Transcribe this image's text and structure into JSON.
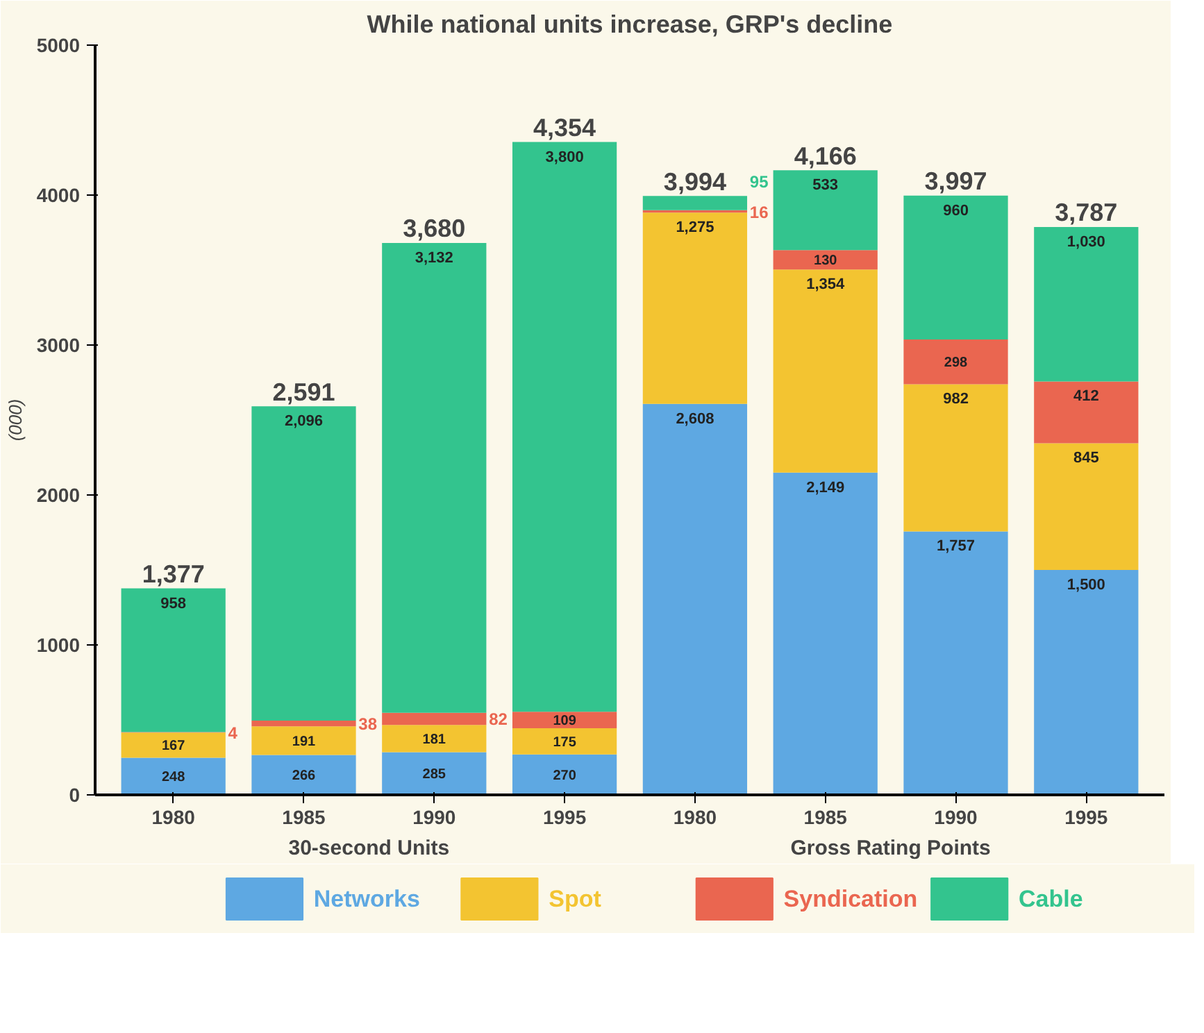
{
  "chart_data": {
    "type": "bar",
    "title": "While national units increase, GRP's decline",
    "ylabel": "(000)",
    "categories": [
      "1980",
      "1985",
      "1990",
      "1995",
      "1980",
      "1985",
      "1990",
      "1995"
    ],
    "stacked": true,
    "series": [
      {
        "name": "Networks",
        "color": "#5ea8e2",
        "values": [
          248,
          266,
          285,
          270,
          2608,
          2149,
          1757,
          1500
        ],
        "value_labels": [
          "248",
          "266",
          "285",
          "270",
          "2,608",
          "2,149",
          "1,757",
          "1,500"
        ]
      },
      {
        "name": "Spot",
        "color": "#f3c431",
        "values": [
          167,
          191,
          181,
          175,
          1275,
          1354,
          982,
          845
        ],
        "value_labels": [
          "167",
          "191",
          "181",
          "175",
          "1,275",
          "1,354",
          "982",
          "845"
        ]
      },
      {
        "name": "Syndication",
        "color": "#ea6650",
        "values": [
          4,
          38,
          82,
          109,
          16,
          130,
          298,
          412
        ],
        "value_labels": [
          "4",
          "38",
          "82",
          "109",
          "16",
          "130",
          "298",
          "412"
        ]
      },
      {
        "name": "Cable",
        "color": "#33c48e",
        "values": [
          958,
          2096,
          3132,
          3800,
          95,
          533,
          960,
          1030
        ],
        "value_labels": [
          "958",
          "2,096",
          "3,132",
          "3,800",
          "95",
          "533",
          "960",
          "1,030"
        ]
      }
    ],
    "totals": [
      "1,377",
      "2,591",
      "3,680",
      "4,354",
      "3,994",
      "4,166",
      "3,997",
      "3,787"
    ],
    "annotations": [
      "30-second Units",
      "Gross Rating Points"
    ],
    "ylim": [
      0,
      5000
    ],
    "yticks": [
      0,
      1000,
      2000,
      3000,
      4000,
      5000
    ],
    "grid": false,
    "legend": "bottom"
  }
}
